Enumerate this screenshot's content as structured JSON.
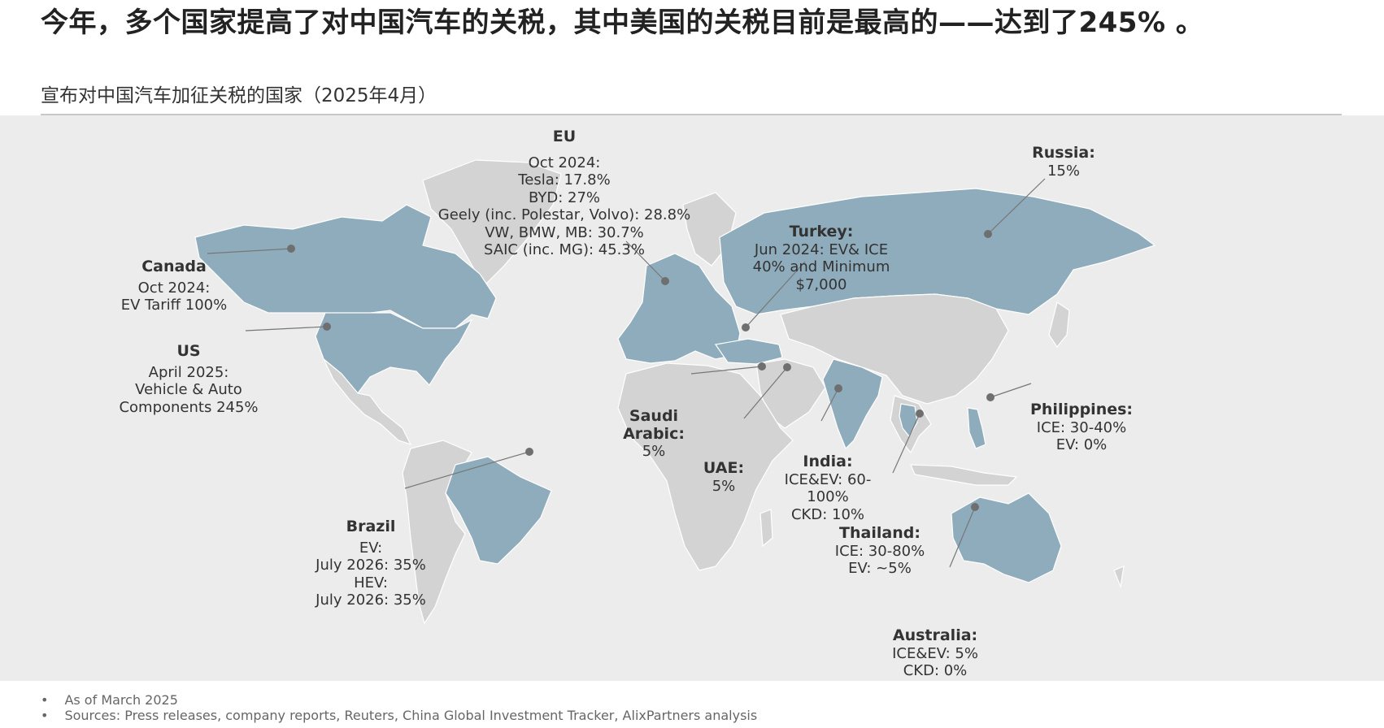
{
  "headline": "今年，多个国家提高了对中国汽车的关税，其中美国的关税目前是最高的——达到了245% 。",
  "subtitle": "宣布对中国汽车加征关税的国家（2025年4月）",
  "colors": {
    "tariff_country": "#8eacbb",
    "other_land": "#d3d3d3",
    "panel": "#ececec"
  },
  "markers": [
    {
      "name": "EU",
      "lines": [
        "Oct 2024:",
        "Tesla: 17.8%",
        "BYD: 27%",
        "Geely (inc. Polestar, Volvo): 28.8%",
        "VW, BMW, MB: 30.7%",
        "SAIC (inc. MG): 45.3%"
      ]
    },
    {
      "name": "Russia:",
      "lines": [
        "15%"
      ]
    },
    {
      "name": "Canada",
      "lines": [
        "Oct 2024:",
        "EV Tariff 100%"
      ]
    },
    {
      "name": "Turkey:",
      "lines": [
        "Jun 2024: EV& ICE",
        "40% and Minimum",
        "$7,000"
      ]
    },
    {
      "name": "US",
      "lines": [
        "April 2025:",
        "Vehicle & Auto",
        "Components 245%"
      ]
    },
    {
      "name": "Saudi Arabic:",
      "lines": [
        "5%"
      ]
    },
    {
      "name": "Philippines:",
      "lines": [
        "ICE: 30-40%",
        "EV: 0%"
      ]
    },
    {
      "name": "UAE:",
      "lines": [
        "5%"
      ]
    },
    {
      "name": "India:",
      "lines": [
        "ICE&EV: 60-",
        "100%",
        "CKD: 10%"
      ]
    },
    {
      "name": "Brazil",
      "lines": [
        "EV:",
        "July 2026: 35%",
        "HEV:",
        "July 2026: 35%"
      ]
    },
    {
      "name": "Thailand:",
      "lines": [
        "ICE: 30-80%",
        "EV: ~5%"
      ]
    },
    {
      "name": "Australia:",
      "lines": [
        "ICE&EV: 5%",
        "CKD: 0%"
      ]
    }
  ],
  "notes": [
    "As of March 2025",
    "Sources: Press releases, company reports, Reuters, China Global Investment Tracker, AlixPartners analysis"
  ]
}
